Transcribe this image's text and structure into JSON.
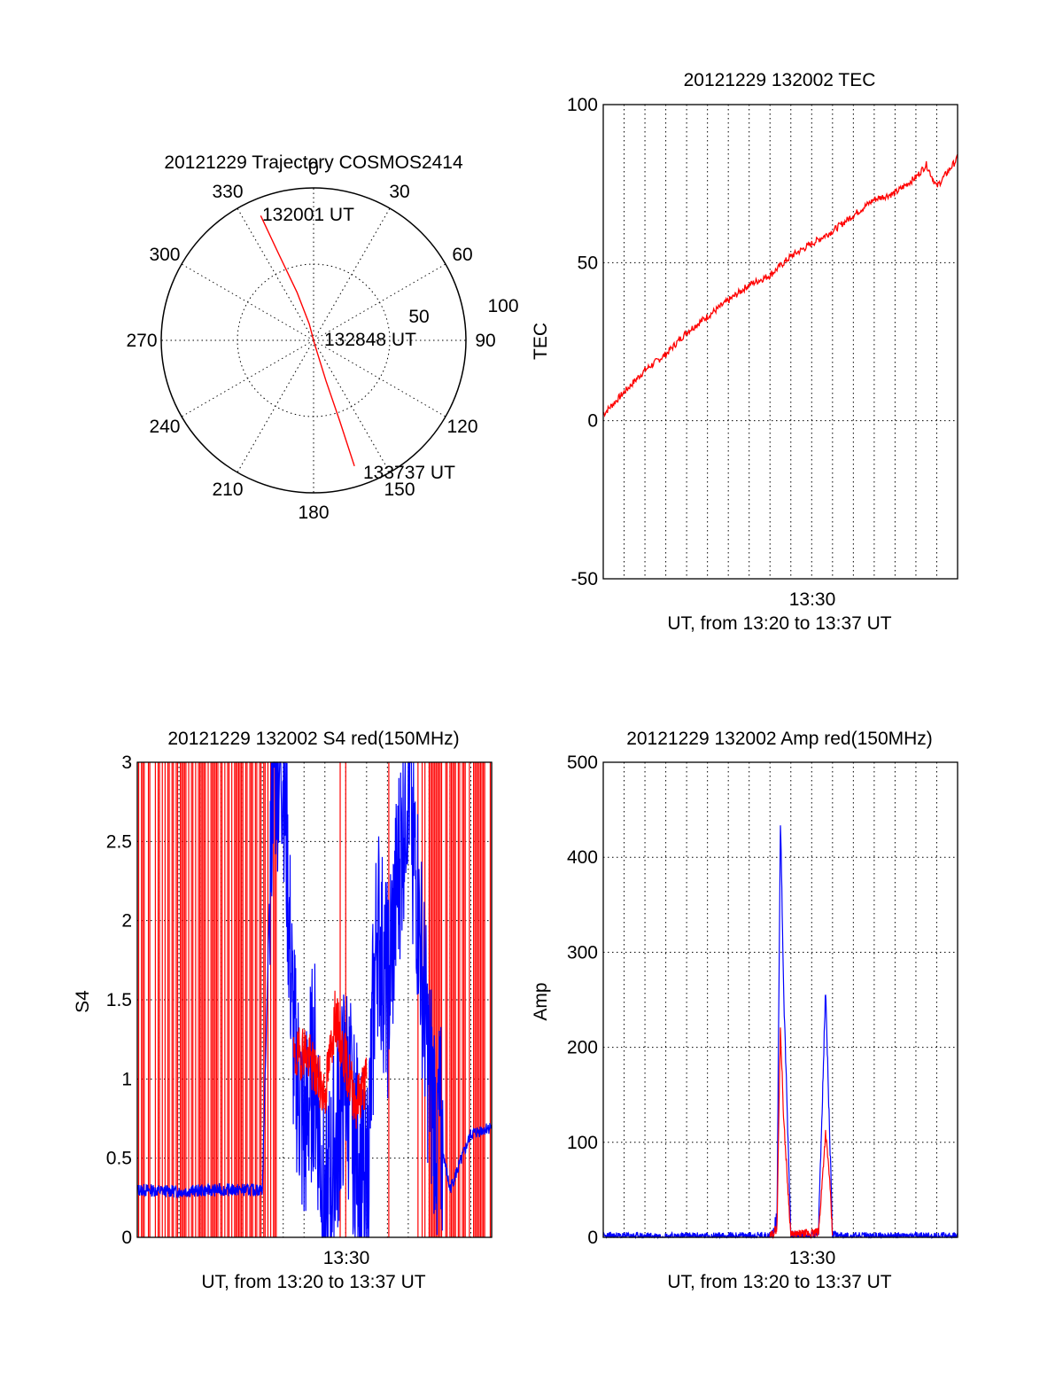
{
  "figure": {
    "trajectory": {
      "title": "20121229 Trajectory COSMOS2414",
      "azimuth_labels": [
        "0",
        "30",
        "60",
        "90",
        "120",
        "150",
        "180",
        "210",
        "240",
        "270",
        "300",
        "330"
      ],
      "radius_labels": [
        "50",
        "100"
      ],
      "track": {
        "color": "#ff0000",
        "start": {
          "label": "132001 UT",
          "azimuth": 337,
          "elevation": 10
        },
        "mid": {
          "label": "132848 UT",
          "azimuth": 165,
          "elevation": 88
        },
        "end": {
          "label": "133737 UT",
          "azimuth": 162,
          "elevation": 12
        }
      }
    },
    "tec": {
      "title": "20121229 132002 TEC",
      "ylabel": "TEC",
      "xtick": "13:30",
      "xlabel": "UT, from 13:20 to 13:37 UT"
    },
    "s4": {
      "title": "20121229 132002 S4 red(150MHz)",
      "ylabel": "S4",
      "xtick": "13:30",
      "xlabel": "UT, from 13:20 to 13:37 UT"
    },
    "amp": {
      "title": "20121229 132002 Amp red(150MHz)",
      "ylabel": "Amp",
      "xtick": "13:30",
      "xlabel": "UT, from 13:20 to 13:37 UT"
    }
  },
  "chart_data": [
    {
      "type": "polar",
      "title": "20121229 Trajectory COSMOS2414",
      "theta_ticks": [
        0,
        30,
        60,
        90,
        120,
        150,
        180,
        210,
        240,
        270,
        300,
        330
      ],
      "r_ticks": [
        50,
        100
      ],
      "series": [
        {
          "color": "#ff0000",
          "points": [
            {
              "azimuth": 337,
              "elevation": 10
            },
            {
              "azimuth": 338,
              "elevation": 35
            },
            {
              "azimuth": 341,
              "elevation": 60
            },
            {
              "azimuth": 345,
              "elevation": 80
            },
            {
              "azimuth": 165,
              "elevation": 88
            },
            {
              "azimuth": 163,
              "elevation": 65
            },
            {
              "azimuth": 162,
              "elevation": 40
            },
            {
              "azimuth": 162,
              "elevation": 12
            }
          ]
        }
      ],
      "annotations": [
        "132001 UT",
        "132848 UT",
        "133737 UT"
      ]
    },
    {
      "type": "line",
      "title": "20121229 132002 TEC",
      "ylabel": "TEC",
      "xlabel": "UT, from 13:20 to 13:37 UT",
      "xlim": [
        "13:20",
        "13:37"
      ],
      "xticks": [
        "13:30"
      ],
      "ylim": [
        -50,
        100
      ],
      "yticks": [
        -50,
        0,
        50,
        100
      ],
      "grid": true,
      "series": [
        {
          "color": "#ff0000",
          "x": [
            "13:20:00",
            "13:21:00",
            "13:22:00",
            "13:23:00",
            "13:24:00",
            "13:25:00",
            "13:26:00",
            "13:27:00",
            "13:28:00",
            "13:29:00",
            "13:30:00",
            "13:31:00",
            "13:32:00",
            "13:33:00",
            "13:34:00",
            "13:35:00",
            "13:35:30",
            "13:36:00",
            "13:37:00"
          ],
          "values": [
            2,
            9,
            16,
            21,
            28,
            33,
            38,
            43,
            46,
            52,
            56,
            60,
            65,
            70,
            72,
            77,
            81,
            74,
            83
          ]
        }
      ]
    },
    {
      "type": "line",
      "title": "20121229 132002 S4 red(150MHz)",
      "ylabel": "S4",
      "xlabel": "UT, from 13:20 to 13:37 UT",
      "xlim": [
        "13:20",
        "13:37"
      ],
      "xticks": [
        "13:30"
      ],
      "ylim": [
        0,
        3
      ],
      "yticks": [
        0,
        0.5,
        1,
        1.5,
        2,
        2.5,
        3
      ],
      "grid": true,
      "series": [
        {
          "color": "#0000ff",
          "x": [
            "13:20:00",
            "13:22:00",
            "13:24:00",
            "13:26:00",
            "13:26:30",
            "13:27:00",
            "13:27:30",
            "13:28:00",
            "13:28:30",
            "13:29:00",
            "13:30:00",
            "13:31:00",
            "13:31:30",
            "13:32:00",
            "13:33:00",
            "13:34:00",
            "13:35:00",
            "13:36:00",
            "13:37:00"
          ],
          "values": [
            0.3,
            0.29,
            0.3,
            0.3,
            3.0,
            3.0,
            1.2,
            0.6,
            1.1,
            0.1,
            1.0,
            0.2,
            2.0,
            1.5,
            3.0,
            1.0,
            0.3,
            0.65,
            0.7
          ]
        },
        {
          "color": "#ff0000",
          "x": [
            "13:27:30",
            "13:28:00",
            "13:28:30",
            "13:29:00",
            "13:29:30",
            "13:30:00",
            "13:30:30",
            "13:31:00"
          ],
          "values": [
            1.1,
            1.2,
            1.05,
            0.9,
            1.4,
            1.1,
            0.85,
            1.0
          ]
        }
      ]
    },
    {
      "type": "line",
      "title": "20121229 132002 Amp red(150MHz)",
      "ylabel": "Amp",
      "xlabel": "UT, from 13:20 to 13:37 UT",
      "xlim": [
        "13:20",
        "13:37"
      ],
      "xticks": [
        "13:30"
      ],
      "ylim": [
        0,
        500
      ],
      "yticks": [
        0,
        100,
        200,
        300,
        400,
        500
      ],
      "grid": true,
      "series": [
        {
          "color": "#0000ff",
          "x": [
            "13:20:00",
            "13:25:00",
            "13:28:00",
            "13:28:20",
            "13:28:30",
            "13:28:40",
            "13:29:00",
            "13:30:00",
            "13:30:20",
            "13:30:40",
            "13:30:50",
            "13:31:00",
            "13:31:20",
            "13:37:00"
          ],
          "values": [
            2,
            2,
            3,
            20,
            440,
            250,
            5,
            3,
            10,
            260,
            130,
            5,
            2,
            2
          ]
        },
        {
          "color": "#ff0000",
          "x": [
            "13:28:00",
            "13:28:20",
            "13:28:30",
            "13:28:40",
            "13:29:00",
            "13:30:20",
            "13:30:40",
            "13:30:50",
            "13:31:00"
          ],
          "values": [
            0,
            10,
            220,
            120,
            2,
            5,
            110,
            70,
            2
          ]
        }
      ]
    }
  ]
}
